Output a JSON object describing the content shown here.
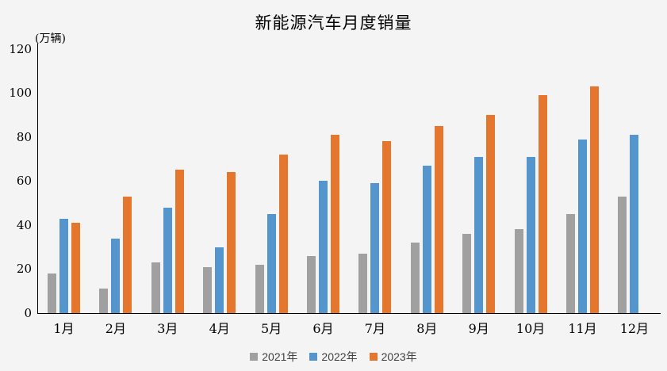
{
  "page": {
    "background_color": "#f4f4f5",
    "axis_color": "#000000",
    "text_color": "#000000"
  },
  "chart_data": {
    "type": "bar",
    "title": "新能源汽车月度销量",
    "unit_label": "(万辆)",
    "xlabel": "",
    "ylabel": "万辆",
    "categories": [
      "1月",
      "2月",
      "3月",
      "4月",
      "5月",
      "6月",
      "7月",
      "8月",
      "9月",
      "10月",
      "11月",
      "12月"
    ],
    "series": [
      {
        "name": "2021年",
        "color": "#a0a0a0",
        "values": [
          18,
          11,
          23,
          21,
          22,
          26,
          27,
          32,
          36,
          38,
          45,
          53
        ]
      },
      {
        "name": "2022年",
        "color": "#5495ce",
        "values": [
          43,
          34,
          48,
          30,
          45,
          60,
          59,
          67,
          71,
          71,
          79,
          81
        ]
      },
      {
        "name": "2023年",
        "color": "#e5762d",
        "values": [
          41,
          53,
          65,
          64,
          72,
          81,
          78,
          85,
          90,
          99,
          103,
          null
        ]
      }
    ],
    "ylim": [
      0,
      120
    ],
    "y_ticks": [
      0,
      20,
      40,
      60,
      80,
      100,
      120
    ],
    "grid": false,
    "legend_position": "bottom"
  }
}
